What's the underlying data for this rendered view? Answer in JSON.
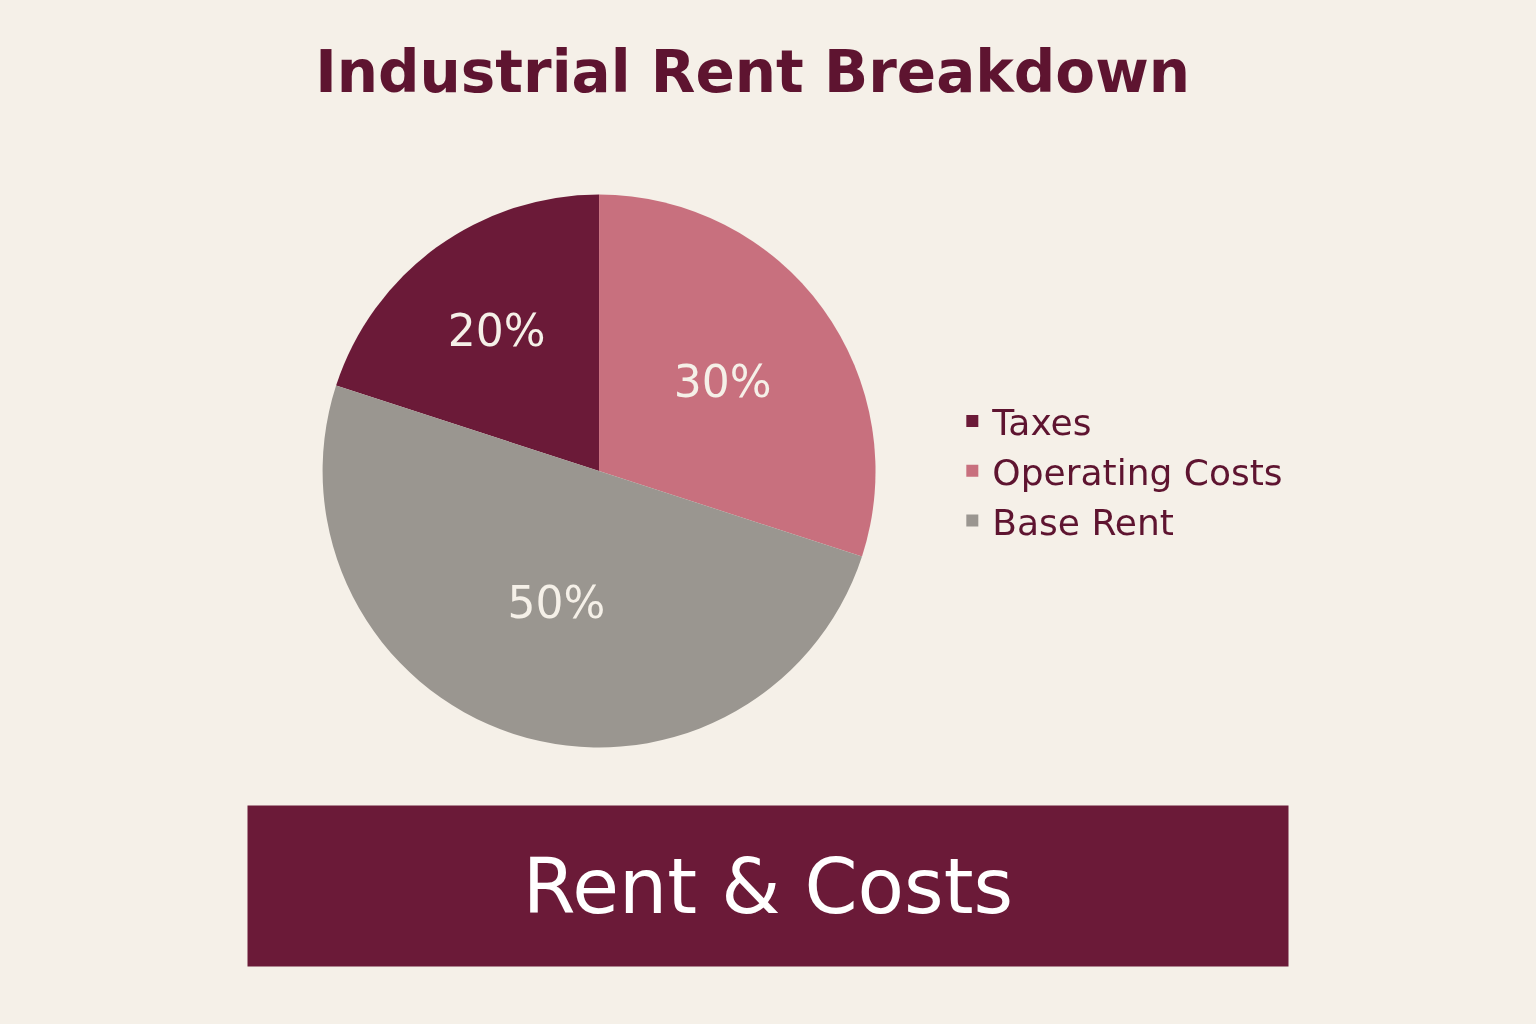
{
  "chart_data": {
    "type": "pie",
    "title": "Industrial Rent Breakdown",
    "categories": [
      "Taxes",
      "Operating Costs",
      "Base Rent"
    ],
    "values": [
      20,
      30,
      50
    ],
    "value_labels": [
      "20%",
      "30%",
      "50%"
    ],
    "colors": [
      "#6b1a38",
      "#c8707e",
      "#9a9690"
    ],
    "legend": "right",
    "annotations": [
      "Rent & Costs"
    ]
  }
}
